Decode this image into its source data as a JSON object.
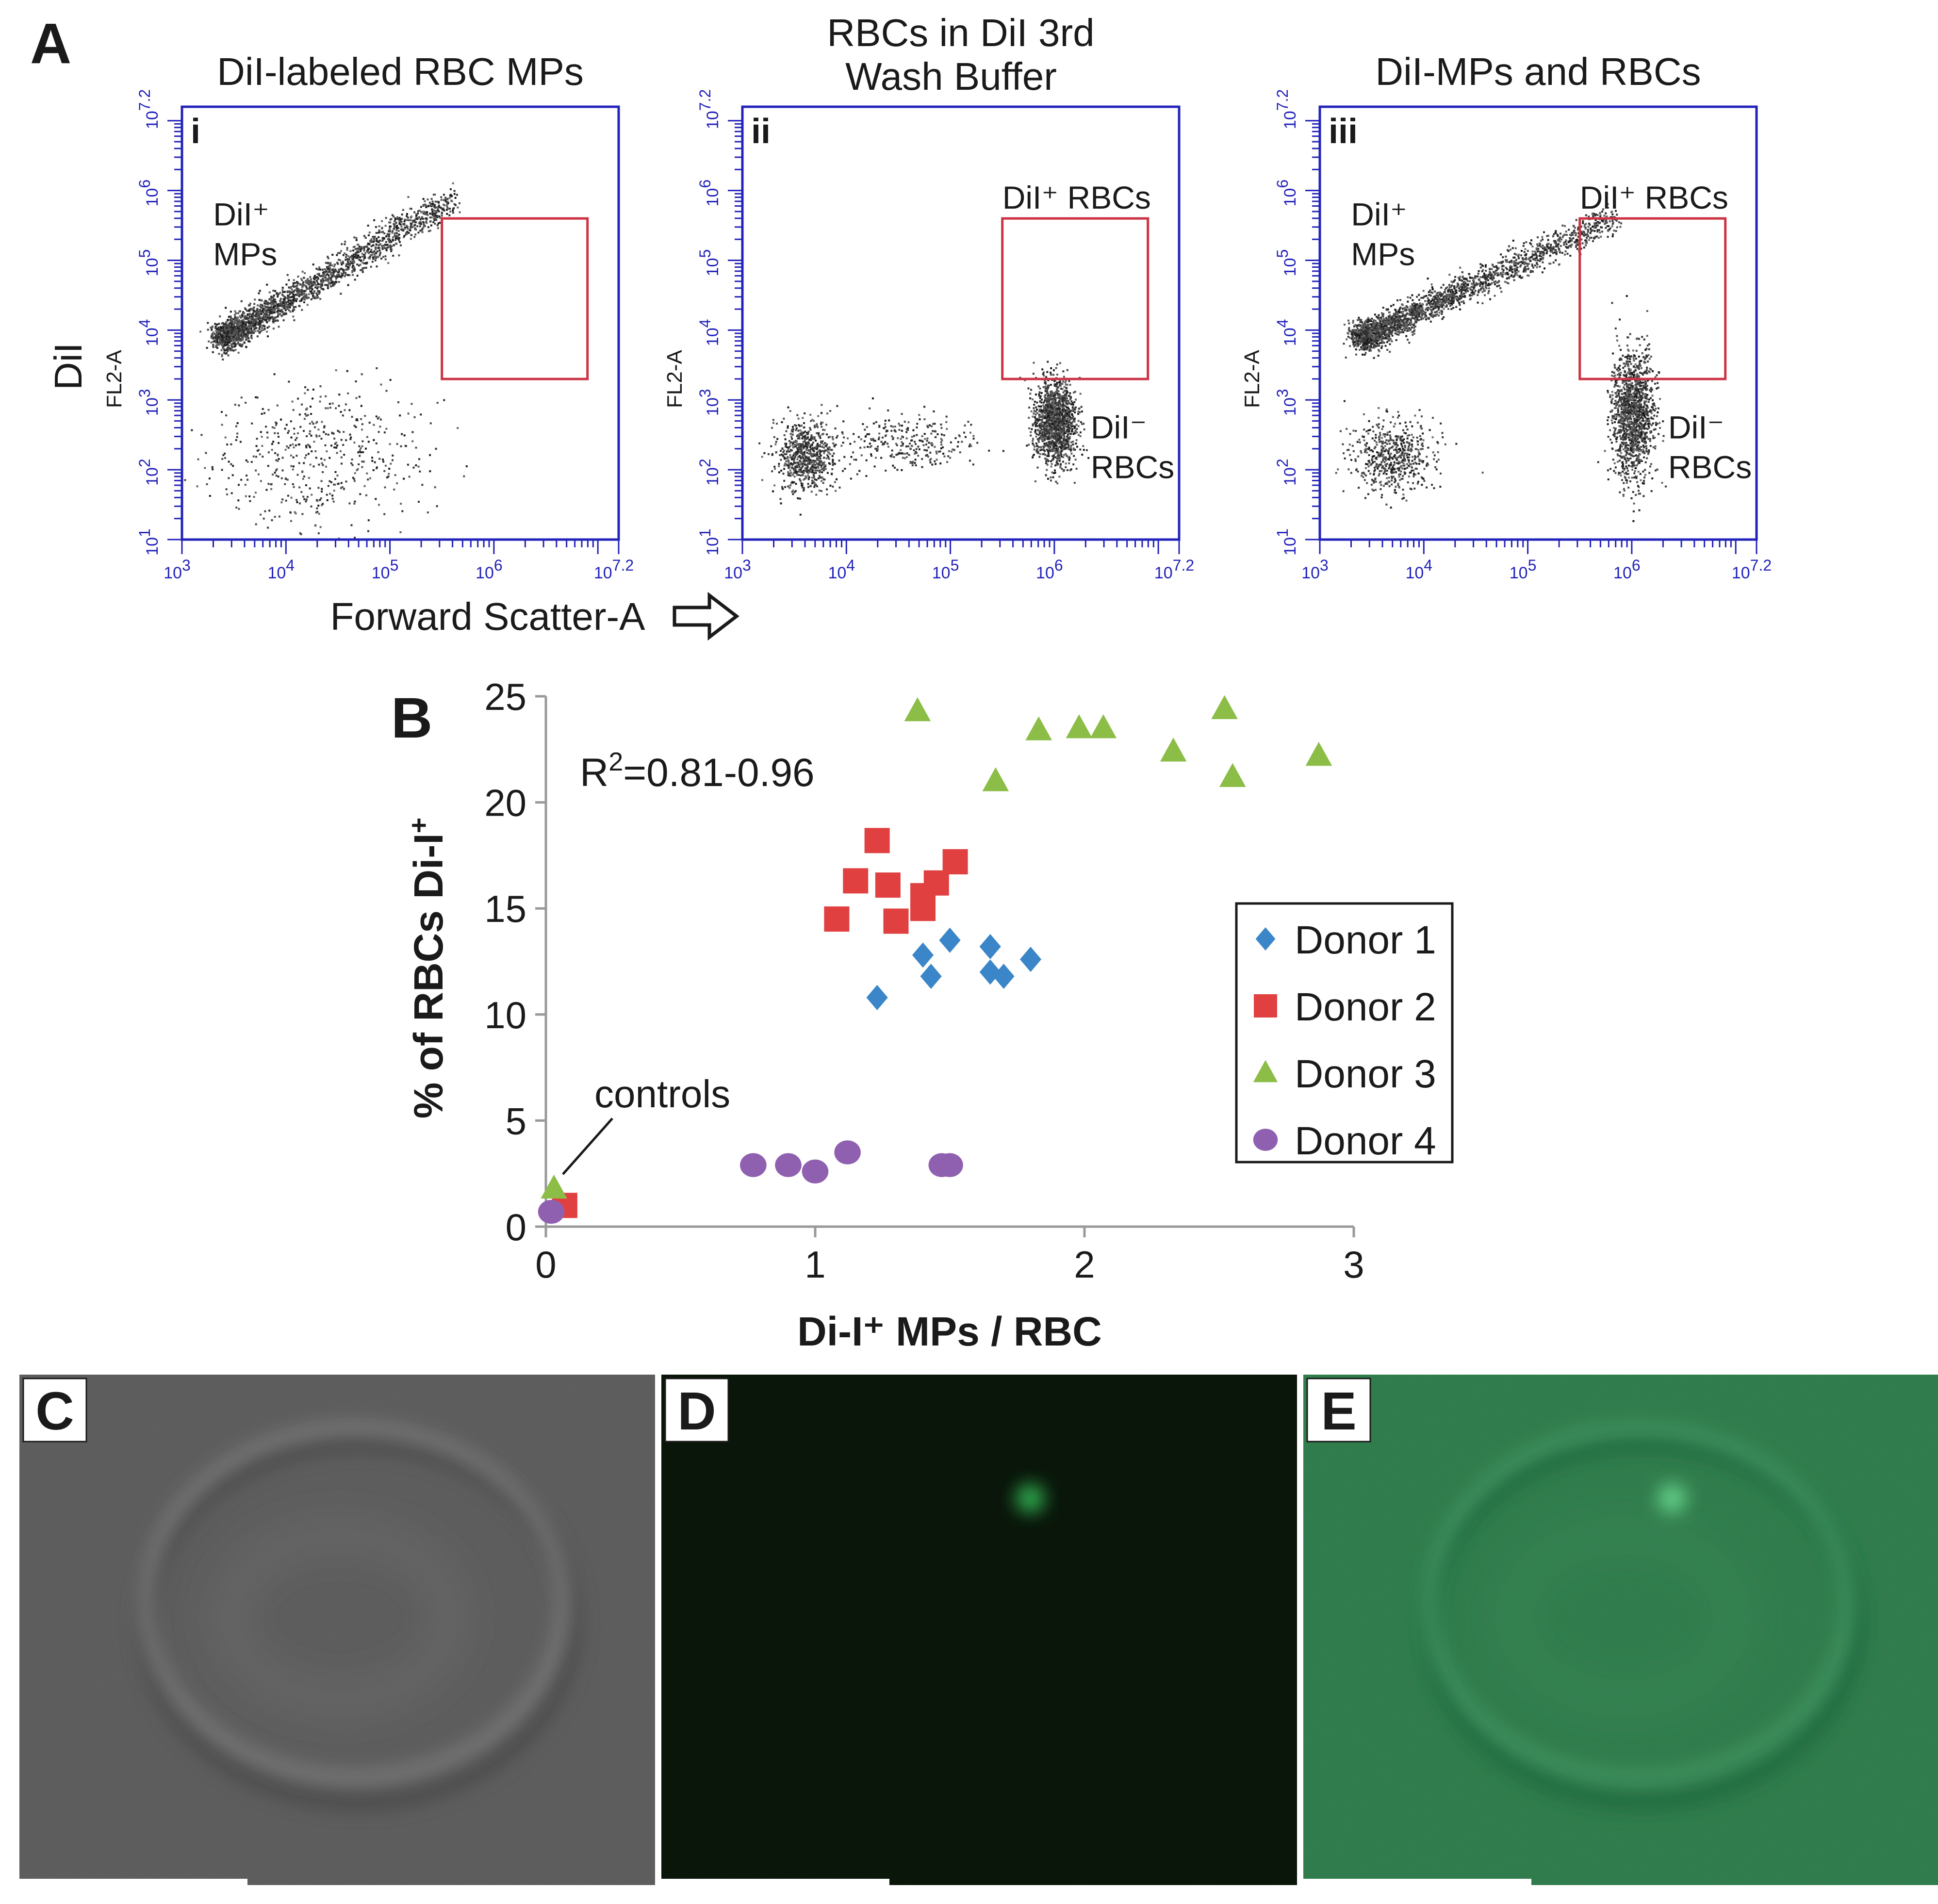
{
  "panel_a": {
    "label": "A",
    "y_axis_label": "DiI",
    "x_axis_label": "Forward Scatter-A",
    "y_channel_label": "FL2-A",
    "x_ticks": [
      "10^3",
      "10^4",
      "10^5",
      "10^6",
      "10^7.2"
    ],
    "y_ticks": [
      "10^1",
      "10^2",
      "10^3",
      "10^4",
      "10^5",
      "10^6",
      "10^7.2"
    ],
    "plots": [
      {
        "roman": "i",
        "title_line1": "DiI-labeled RBC MPs",
        "title_line2": "",
        "annotations": [
          {
            "line1": "DiI⁺",
            "line2": "MPs"
          }
        ],
        "gate_label": "",
        "populations": [
          {
            "kind": "diagonal",
            "from": [
              3.4,
              3.9
            ],
            "to": [
              5.6,
              5.9
            ],
            "density": 0.9
          },
          {
            "kind": "cluster",
            "center": [
              4.3,
              2.2
            ],
            "spread": [
              0.5,
              0.5
            ],
            "density": 0.35
          }
        ]
      },
      {
        "roman": "ii",
        "title_line1": "RBCs in DiI 3rd",
        "title_line2": "Wash Buffer",
        "annotations": [
          {
            "line1": "DiI⁻",
            "line2": "RBCs"
          }
        ],
        "gate_label": "DiI⁺ RBCs",
        "populations": [
          {
            "kind": "cluster",
            "center": [
              3.6,
              2.2
            ],
            "spread": [
              0.15,
              0.25
            ],
            "density": 0.5
          },
          {
            "kind": "cluster",
            "center": [
              4.6,
              2.4
            ],
            "spread": [
              0.35,
              0.2
            ],
            "density": 0.2
          },
          {
            "kind": "cluster",
            "center": [
              6.0,
              2.7
            ],
            "spread": [
              0.1,
              0.3
            ],
            "density": 1.0
          }
        ]
      },
      {
        "roman": "iii",
        "title_line1": "DiI-MPs and RBCs",
        "title_line2": "",
        "annotations": [
          {
            "line1": "DiI⁺",
            "line2": "MPs"
          },
          {
            "line1": "DiI⁻",
            "line2": "RBCs"
          }
        ],
        "gate_label": "DiI⁺ RBCs",
        "populations": [
          {
            "kind": "diagonal",
            "from": [
              3.4,
              3.9
            ],
            "to": [
              5.8,
              5.6
            ],
            "density": 0.9
          },
          {
            "kind": "cluster",
            "center": [
              3.7,
              2.2
            ],
            "spread": [
              0.2,
              0.25
            ],
            "density": 0.4
          },
          {
            "kind": "cluster",
            "center": [
              6.0,
              2.8
            ],
            "spread": [
              0.1,
              0.45
            ],
            "density": 1.0
          }
        ]
      }
    ]
  },
  "panel_b": {
    "label": "B",
    "annotation_r2_base": "R",
    "annotation_r2_sup": "2",
    "annotation_r2_rest": "=0.81-0.96",
    "annotation_controls": "controls",
    "ylabel_main": "% of RBCs Di-I",
    "ylabel_sup": "+",
    "xlabel": "Di-I⁺ MPs / RBC",
    "chart_data": {
      "type": "scatter",
      "xlabel": "Di-I⁺ MPs / RBC",
      "ylabel": "% of RBCs Di-I⁺",
      "xlim": [
        0,
        3
      ],
      "ylim": [
        0,
        25
      ],
      "xticks": [
        0,
        1,
        2,
        3
      ],
      "yticks": [
        0,
        5,
        10,
        15,
        20,
        25
      ],
      "legend_position": "right",
      "series": [
        {
          "name": "Donor 1",
          "marker": "diamond",
          "color": "#3a86c8",
          "points": [
            [
              1.23,
              10.8
            ],
            [
              1.4,
              12.8
            ],
            [
              1.43,
              11.8
            ],
            [
              1.5,
              13.5
            ],
            [
              1.65,
              13.2
            ],
            [
              1.65,
              12.0
            ],
            [
              1.7,
              11.8
            ],
            [
              1.8,
              12.6
            ]
          ]
        },
        {
          "name": "Donor 2",
          "marker": "square",
          "color": "#e04040",
          "points": [
            [
              0.07,
              1.0
            ],
            [
              1.08,
              14.5
            ],
            [
              1.15,
              16.3
            ],
            [
              1.23,
              18.2
            ],
            [
              1.27,
              16.1
            ],
            [
              1.3,
              14.4
            ],
            [
              1.4,
              15.0
            ],
            [
              1.4,
              15.6
            ],
            [
              1.45,
              16.2
            ],
            [
              1.52,
              17.2
            ]
          ]
        },
        {
          "name": "Donor 3",
          "marker": "triangle",
          "color": "#8bbd47",
          "points": [
            [
              0.03,
              1.8
            ],
            [
              1.38,
              24.3
            ],
            [
              1.67,
              21.0
            ],
            [
              1.83,
              23.4
            ],
            [
              1.98,
              23.5
            ],
            [
              2.07,
              23.5
            ],
            [
              2.33,
              22.4
            ],
            [
              2.52,
              24.4
            ],
            [
              2.55,
              21.2
            ],
            [
              2.87,
              22.2
            ]
          ]
        },
        {
          "name": "Donor 4",
          "marker": "circle",
          "color": "#9060b0",
          "points": [
            [
              0.02,
              0.7
            ],
            [
              0.77,
              2.9
            ],
            [
              0.9,
              2.9
            ],
            [
              1.0,
              2.6
            ],
            [
              1.12,
              3.5
            ],
            [
              1.47,
              2.9
            ],
            [
              1.5,
              2.9
            ]
          ]
        }
      ]
    }
  },
  "panels_cde": [
    {
      "label": "C",
      "kind": "brightfield",
      "bg": "#5a5a5a"
    },
    {
      "label": "D",
      "kind": "fluorescence",
      "bg": "#031003"
    },
    {
      "label": "E",
      "kind": "merge",
      "bg": "#2c7a48"
    }
  ]
}
